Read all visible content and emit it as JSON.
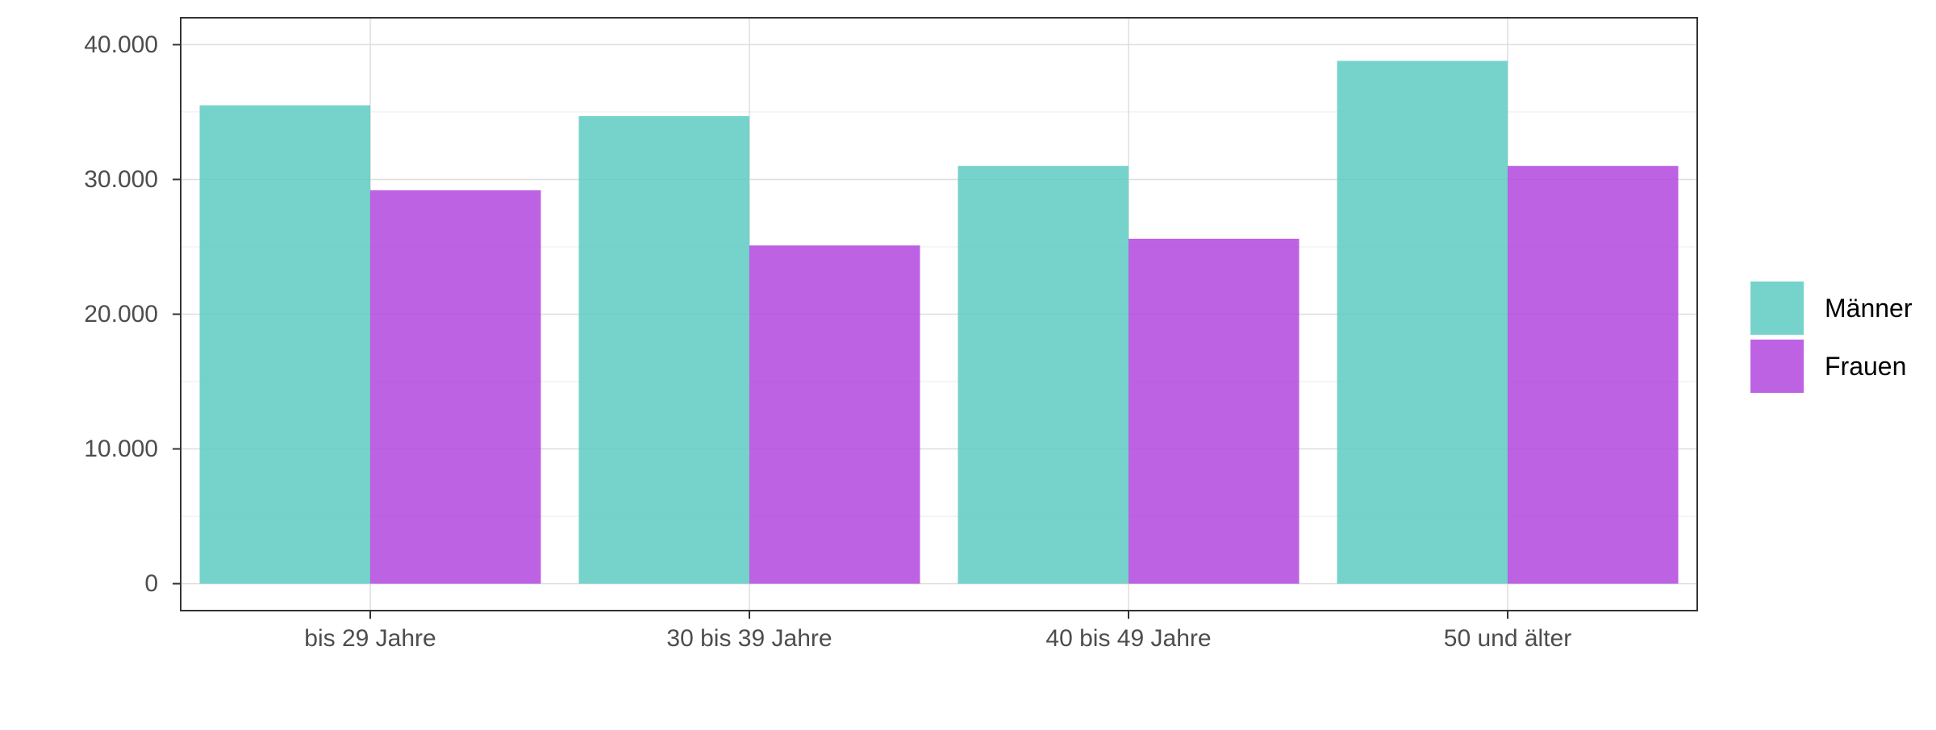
{
  "chart_data": {
    "type": "bar",
    "title": "",
    "xlabel": "",
    "ylabel": "",
    "categories": [
      "bis 29 Jahre",
      "30 bis 39 Jahre",
      "40 bis 49 Jahre",
      "50 und älter"
    ],
    "series": [
      {
        "name": "Männer",
        "values": [
          35500,
          34700,
          31000,
          38800
        ],
        "color": "#5ecbc2"
      },
      {
        "name": "Frauen",
        "values": [
          29200,
          25100,
          25600,
          31000
        ],
        "color": "#b347df"
      }
    ],
    "ylim": [
      -2000,
      42000
    ],
    "yticks": [
      0,
      10000,
      20000,
      30000,
      40000
    ],
    "ytick_labels": [
      "0",
      "10.000",
      "20.000",
      "30.000",
      "40.000"
    ],
    "grid": true,
    "legend_position": "right"
  }
}
